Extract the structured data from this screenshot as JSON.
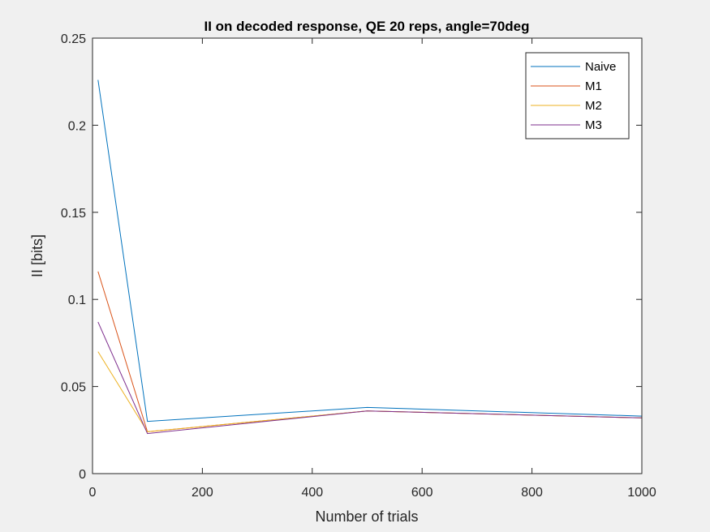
{
  "chart_data": {
    "type": "line",
    "title": "II on decoded response, QE 20 reps, angle=70deg",
    "xlabel": "Number of trials",
    "ylabel": "II [bits]",
    "xlim": [
      0,
      1000
    ],
    "ylim": [
      0,
      0.25
    ],
    "xticks": [
      0,
      200,
      400,
      600,
      800,
      1000
    ],
    "xtick_labels": [
      "0",
      "200",
      "400",
      "600",
      "800",
      "1000"
    ],
    "yticks": [
      0,
      0.05,
      0.1,
      0.15,
      0.2,
      0.25
    ],
    "ytick_labels": [
      "0",
      "0.05",
      "0.1",
      "0.15",
      "0.2",
      "0.25"
    ],
    "grid": false,
    "legend_position": "top-right",
    "x": [
      10,
      100,
      500,
      1000
    ],
    "series": [
      {
        "name": "Naive",
        "color": "#0072bd",
        "values": [
          0.226,
          0.03,
          0.038,
          0.033
        ]
      },
      {
        "name": "M1",
        "color": "#d95319",
        "values": [
          0.116,
          0.024,
          0.036,
          0.032
        ]
      },
      {
        "name": "M2",
        "color": "#edb120",
        "values": [
          0.07,
          0.024,
          0.036,
          0.032
        ]
      },
      {
        "name": "M3",
        "color": "#7e2f8e",
        "values": [
          0.087,
          0.023,
          0.036,
          0.032
        ]
      }
    ]
  }
}
